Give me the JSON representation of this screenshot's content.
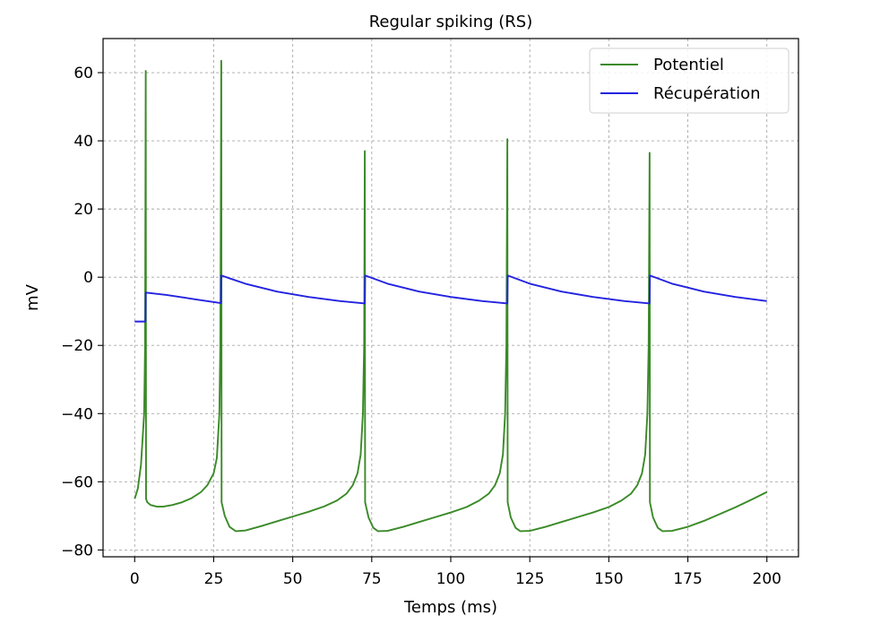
{
  "chart_data": {
    "type": "line",
    "title": "Regular spiking (RS)",
    "xlabel": "Temps (ms)",
    "ylabel": "mV",
    "xlim": [
      -10,
      210
    ],
    "ylim": [
      -82,
      70
    ],
    "xticks": [
      0,
      25,
      50,
      75,
      100,
      125,
      150,
      175,
      200
    ],
    "yticks": [
      -80,
      -60,
      -40,
      -20,
      0,
      20,
      40,
      60
    ],
    "grid": true,
    "legend_position": "top-right",
    "series": [
      {
        "name": "Potentiel",
        "color": "#3a8a27",
        "points": [
          [
            0,
            -65
          ],
          [
            1,
            -62
          ],
          [
            2,
            -55
          ],
          [
            3,
            -40
          ],
          [
            3.3,
            -20
          ],
          [
            3.5,
            60.5
          ],
          [
            3.6,
            -65
          ],
          [
            4,
            -66
          ],
          [
            5,
            -66.8
          ],
          [
            7,
            -67.3
          ],
          [
            9,
            -67.3
          ],
          [
            12,
            -66.8
          ],
          [
            15,
            -66
          ],
          [
            18,
            -64.8
          ],
          [
            21,
            -63
          ],
          [
            23,
            -61
          ],
          [
            25,
            -57.5
          ],
          [
            26,
            -53
          ],
          [
            26.8,
            -40
          ],
          [
            27.1,
            -20
          ],
          [
            27.4,
            63.5
          ],
          [
            27.5,
            -66
          ],
          [
            28.5,
            -70
          ],
          [
            30,
            -73.2
          ],
          [
            32,
            -74.5
          ],
          [
            35,
            -74.3
          ],
          [
            40,
            -73
          ],
          [
            45,
            -71.6
          ],
          [
            50,
            -70.2
          ],
          [
            55,
            -68.8
          ],
          [
            60,
            -67.2
          ],
          [
            64,
            -65.5
          ],
          [
            67,
            -63.5
          ],
          [
            69,
            -61
          ],
          [
            70.5,
            -57.5
          ],
          [
            71.5,
            -52
          ],
          [
            72.2,
            -40
          ],
          [
            72.6,
            -20
          ],
          [
            72.8,
            37
          ],
          [
            72.9,
            -66
          ],
          [
            74,
            -70.5
          ],
          [
            75.5,
            -73.5
          ],
          [
            77,
            -74.5
          ],
          [
            80,
            -74.4
          ],
          [
            85,
            -73.2
          ],
          [
            90,
            -71.8
          ],
          [
            95,
            -70.4
          ],
          [
            100,
            -69
          ],
          [
            105,
            -67.4
          ],
          [
            109,
            -65.5
          ],
          [
            112,
            -63.5
          ],
          [
            114,
            -61
          ],
          [
            115.5,
            -57.5
          ],
          [
            116.5,
            -52
          ],
          [
            117.2,
            -40
          ],
          [
            117.6,
            -20
          ],
          [
            117.9,
            40.5
          ],
          [
            118,
            -66
          ],
          [
            119,
            -70.5
          ],
          [
            120.5,
            -73.5
          ],
          [
            122,
            -74.5
          ],
          [
            125,
            -74.4
          ],
          [
            130,
            -73.2
          ],
          [
            135,
            -71.8
          ],
          [
            140,
            -70.4
          ],
          [
            145,
            -69
          ],
          [
            150,
            -67.4
          ],
          [
            154,
            -65.5
          ],
          [
            157,
            -63.5
          ],
          [
            159,
            -61
          ],
          [
            160.5,
            -57.5
          ],
          [
            161.5,
            -52
          ],
          [
            162.2,
            -40
          ],
          [
            162.6,
            -20
          ],
          [
            162.9,
            36.5
          ],
          [
            163,
            -66
          ],
          [
            164,
            -70.5
          ],
          [
            165.5,
            -73.5
          ],
          [
            167,
            -74.5
          ],
          [
            170,
            -74.4
          ],
          [
            175,
            -73.2
          ],
          [
            180,
            -71.5
          ],
          [
            185,
            -69.5
          ],
          [
            190,
            -67.5
          ],
          [
            195,
            -65.3
          ],
          [
            200,
            -63
          ]
        ]
      },
      {
        "name": "Récupération",
        "color": "#2323e0",
        "points": [
          [
            0,
            -13
          ],
          [
            3.4,
            -13
          ],
          [
            3.5,
            -4.5
          ],
          [
            10,
            -5.2
          ],
          [
            15,
            -5.9
          ],
          [
            20,
            -6.6
          ],
          [
            27.3,
            -7.6
          ],
          [
            27.4,
            0.5
          ],
          [
            35,
            -1.9
          ],
          [
            45,
            -4.2
          ],
          [
            55,
            -5.8
          ],
          [
            65,
            -7
          ],
          [
            72.8,
            -7.7
          ],
          [
            72.9,
            0.5
          ],
          [
            80,
            -1.9
          ],
          [
            90,
            -4.2
          ],
          [
            100,
            -5.8
          ],
          [
            110,
            -7
          ],
          [
            117.9,
            -7.7
          ],
          [
            118,
            0.5
          ],
          [
            125,
            -1.9
          ],
          [
            135,
            -4.2
          ],
          [
            145,
            -5.8
          ],
          [
            155,
            -7
          ],
          [
            162.9,
            -7.7
          ],
          [
            163,
            0.5
          ],
          [
            170,
            -1.9
          ],
          [
            180,
            -4.2
          ],
          [
            190,
            -5.8
          ],
          [
            200,
            -7
          ]
        ]
      }
    ]
  }
}
